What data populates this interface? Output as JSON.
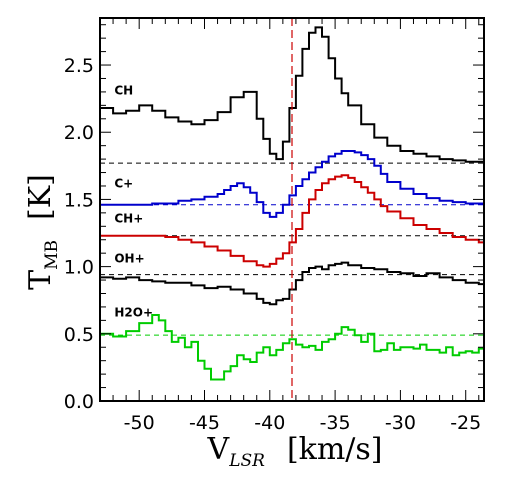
{
  "chart_data": {
    "type": "line",
    "step": true,
    "title": "",
    "xlabel": {
      "main": "V",
      "sub": "LSR",
      "units": "[km/s]"
    },
    "ylabel": {
      "main": "T",
      "sub": "MB",
      "units": "[K]"
    },
    "xlim": [
      -53.0,
      -23.6
    ],
    "ylim": [
      0.0,
      2.85
    ],
    "xticks": [
      -50,
      -45,
      -40,
      -35,
      -30,
      -25
    ],
    "xtick_labels": [
      "-50",
      "-45",
      "-40",
      "-35",
      "-30",
      "-25"
    ],
    "yticks": [
      0.0,
      0.5,
      1.0,
      1.5,
      2.0,
      2.5
    ],
    "ytick_labels": [
      "0.0",
      "0.5",
      "1.0",
      "1.5",
      "2.0",
      "2.5"
    ],
    "vline": {
      "x": -38.3,
      "color": "#cc0000",
      "style": "dashed"
    },
    "series": [
      {
        "name": "CH",
        "color": "#000000",
        "baseline": 1.77,
        "baseline_color": "#000000",
        "label_x": -51.9,
        "label_y": 2.28,
        "x": [
          -53.0,
          -52.0,
          -51.0,
          -50.0,
          -49.0,
          -48.0,
          -47.0,
          -46.0,
          -45.0,
          -44.0,
          -43.0,
          -42.0,
          -41.0,
          -40.5,
          -40.0,
          -39.5,
          -39.0,
          -38.5,
          -38.0,
          -37.5,
          -37.0,
          -36.5,
          -36.0,
          -35.5,
          -35.0,
          -34.5,
          -34.0,
          -33.0,
          -32.0,
          -31.0,
          -30.0,
          -29.0,
          -28.0,
          -27.0,
          -26.0,
          -25.0,
          -24.0,
          -23.6
        ],
        "y": [
          2.18,
          2.14,
          2.16,
          2.2,
          2.16,
          2.11,
          2.08,
          2.06,
          2.09,
          2.15,
          2.26,
          2.3,
          2.1,
          1.95,
          1.84,
          1.8,
          1.93,
          2.18,
          2.42,
          2.62,
          2.74,
          2.78,
          2.71,
          2.55,
          2.4,
          2.29,
          2.2,
          2.06,
          1.96,
          1.9,
          1.86,
          1.84,
          1.82,
          1.8,
          1.79,
          1.78,
          1.78,
          1.78
        ]
      },
      {
        "name": "C+",
        "color": "#0000cc",
        "baseline": 1.46,
        "baseline_color": "#0000cc",
        "label_x": -51.9,
        "label_y": 1.59,
        "x": [
          -53.0,
          -51.0,
          -49.0,
          -47.0,
          -46.0,
          -45.0,
          -44.0,
          -43.5,
          -43.0,
          -42.5,
          -42.0,
          -41.5,
          -41.0,
          -40.5,
          -40.0,
          -39.5,
          -39.0,
          -38.5,
          -38.0,
          -37.5,
          -37.0,
          -36.5,
          -36.0,
          -35.5,
          -35.0,
          -34.5,
          -34.0,
          -33.5,
          -33.0,
          -32.5,
          -32.0,
          -31.5,
          -31.0,
          -30.0,
          -29.0,
          -28.0,
          -27.0,
          -26.0,
          -25.0,
          -23.6
        ],
        "y": [
          1.46,
          1.46,
          1.47,
          1.49,
          1.5,
          1.52,
          1.54,
          1.57,
          1.6,
          1.62,
          1.59,
          1.55,
          1.48,
          1.4,
          1.37,
          1.4,
          1.46,
          1.53,
          1.6,
          1.65,
          1.7,
          1.74,
          1.78,
          1.82,
          1.84,
          1.86,
          1.86,
          1.85,
          1.83,
          1.8,
          1.75,
          1.69,
          1.63,
          1.58,
          1.54,
          1.51,
          1.49,
          1.48,
          1.47,
          1.47
        ]
      },
      {
        "name": "CH+",
        "color": "#cc0000",
        "baseline": 1.23,
        "baseline_color": "#000000",
        "label_x": -51.9,
        "label_y": 1.33,
        "x": [
          -53.0,
          -51.0,
          -49.0,
          -48.0,
          -47.0,
          -46.0,
          -45.0,
          -44.0,
          -43.0,
          -42.0,
          -41.0,
          -40.5,
          -40.0,
          -39.5,
          -39.0,
          -38.5,
          -38.0,
          -37.5,
          -37.0,
          -36.5,
          -36.0,
          -35.5,
          -35.0,
          -34.5,
          -34.0,
          -33.5,
          -33.0,
          -32.5,
          -32.0,
          -31.5,
          -31.0,
          -30.0,
          -29.0,
          -28.0,
          -27.0,
          -26.0,
          -25.0,
          -24.0,
          -23.6
        ],
        "y": [
          1.23,
          1.23,
          1.23,
          1.22,
          1.2,
          1.18,
          1.15,
          1.12,
          1.08,
          1.04,
          1.01,
          1.0,
          1.02,
          1.06,
          1.1,
          1.18,
          1.28,
          1.4,
          1.5,
          1.57,
          1.62,
          1.65,
          1.67,
          1.68,
          1.66,
          1.63,
          1.59,
          1.55,
          1.5,
          1.45,
          1.41,
          1.36,
          1.31,
          1.28,
          1.25,
          1.22,
          1.2,
          1.18,
          1.18
        ]
      },
      {
        "name": "OH+",
        "color": "#000000",
        "baseline": 0.94,
        "baseline_color": "#000000",
        "label_x": -51.9,
        "label_y": 1.03,
        "x": [
          -53.0,
          -52.0,
          -51.0,
          -50.0,
          -49.0,
          -48.0,
          -47.0,
          -46.0,
          -45.0,
          -44.0,
          -43.0,
          -42.0,
          -41.0,
          -40.5,
          -40.0,
          -39.5,
          -39.0,
          -38.5,
          -38.0,
          -37.5,
          -37.0,
          -36.5,
          -36.0,
          -35.5,
          -35.0,
          -34.5,
          -34.0,
          -33.0,
          -32.0,
          -31.0,
          -30.0,
          -29.0,
          -28.0,
          -27.0,
          -26.0,
          -25.0,
          -24.0,
          -23.6
        ],
        "y": [
          0.92,
          0.91,
          0.92,
          0.9,
          0.89,
          0.88,
          0.88,
          0.86,
          0.84,
          0.85,
          0.83,
          0.8,
          0.76,
          0.73,
          0.72,
          0.75,
          0.76,
          0.83,
          0.9,
          0.96,
          0.99,
          1.0,
          0.98,
          1.01,
          1.02,
          1.03,
          1.01,
          0.99,
          0.98,
          0.96,
          0.95,
          0.93,
          0.95,
          0.92,
          0.9,
          0.88,
          0.87,
          0.86
        ]
      },
      {
        "name": "H2O+",
        "color": "#00cc00",
        "baseline": 0.49,
        "baseline_color": "#00cc00",
        "label_x": -51.9,
        "label_y": 0.63,
        "x": [
          -53.0,
          -52.0,
          -51.0,
          -50.0,
          -49.0,
          -48.5,
          -48.0,
          -47.5,
          -47.0,
          -46.5,
          -46.0,
          -45.5,
          -45.0,
          -44.5,
          -44.0,
          -43.5,
          -43.0,
          -42.5,
          -42.0,
          -41.5,
          -41.0,
          -40.5,
          -40.0,
          -39.5,
          -39.0,
          -38.5,
          -38.0,
          -37.5,
          -37.0,
          -36.5,
          -36.0,
          -35.5,
          -35.0,
          -34.5,
          -34.0,
          -33.5,
          -33.0,
          -32.5,
          -32.0,
          -31.5,
          -31.0,
          -30.5,
          -30.0,
          -29.5,
          -29.0,
          -28.5,
          -28.0,
          -27.5,
          -27.0,
          -26.5,
          -26.0,
          -25.5,
          -25.0,
          -24.5,
          -24.0,
          -23.6
        ],
        "y": [
          0.5,
          0.48,
          0.52,
          0.58,
          0.64,
          0.6,
          0.52,
          0.44,
          0.47,
          0.4,
          0.44,
          0.3,
          0.24,
          0.16,
          0.16,
          0.22,
          0.26,
          0.34,
          0.31,
          0.29,
          0.36,
          0.4,
          0.34,
          0.38,
          0.43,
          0.46,
          0.42,
          0.4,
          0.41,
          0.38,
          0.44,
          0.46,
          0.5,
          0.55,
          0.53,
          0.49,
          0.44,
          0.5,
          0.37,
          0.38,
          0.43,
          0.38,
          0.4,
          0.4,
          0.39,
          0.42,
          0.38,
          0.38,
          0.36,
          0.4,
          0.34,
          0.36,
          0.37,
          0.36,
          0.39,
          0.39
        ]
      }
    ]
  }
}
